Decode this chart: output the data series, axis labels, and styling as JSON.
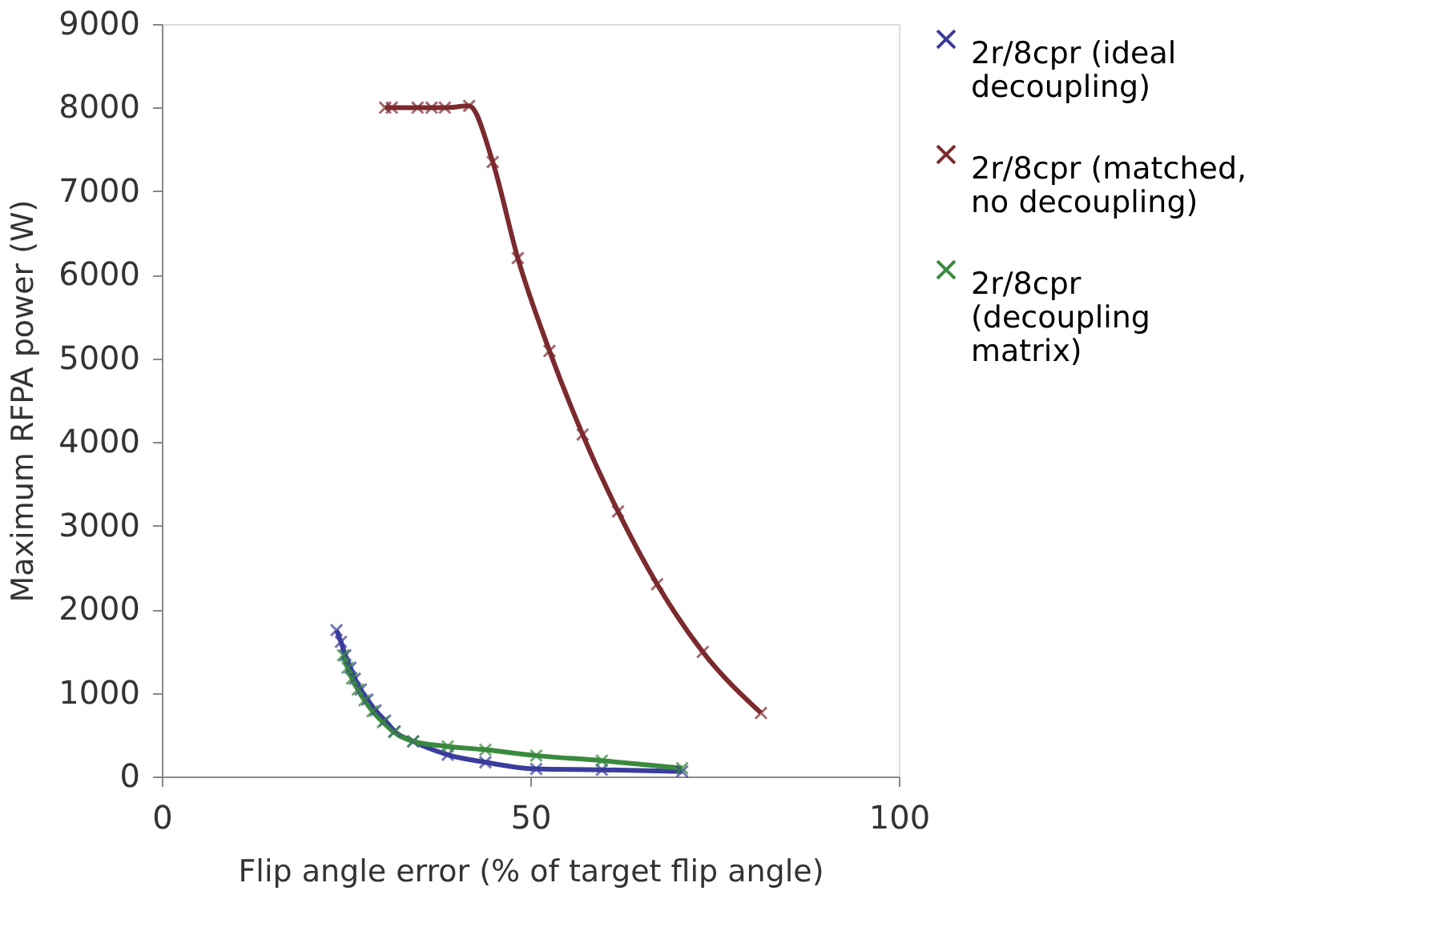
{
  "chart_data": {
    "type": "line",
    "xlabel": "Flip angle error (% of target flip angle)",
    "ylabel": "Maximum RFPA power (W)",
    "xlim": [
      0,
      100
    ],
    "xticks": [
      0,
      50,
      100
    ],
    "ylim": [
      0,
      9000
    ],
    "yticks": [
      0,
      1000,
      2000,
      3000,
      4000,
      5000,
      6000,
      7000,
      8000,
      9000
    ],
    "grid": false,
    "legend": "right",
    "marker": "cross",
    "line_style": "solid",
    "series": [
      {
        "name": "2r/8cpr (ideal decoupling)",
        "color": "#3a3d9c",
        "x": [
          23.7,
          24.3,
          24.9,
          25.6,
          26.2,
          27.0,
          27.9,
          29.0,
          30.3,
          31.6,
          34.1,
          38.8,
          43.9,
          50.8,
          59.7,
          70.6
        ],
        "values": [
          1750,
          1610,
          1450,
          1300,
          1170,
          1040,
          920,
          790,
          670,
          540,
          420,
          260,
          170,
          90,
          80,
          60
        ]
      },
      {
        "name": "2r/8cpr (matched, no decoupling)",
        "color": "#7b2a2e",
        "x": [
          30.3,
          31.2,
          34.7,
          36.6,
          38.4,
          41.7,
          44.9,
          48.3,
          52.6,
          57.1,
          61.9,
          67.2,
          73.4,
          81.3
        ],
        "values": [
          8000,
          8000,
          8000,
          8000,
          8000,
          8020,
          7350,
          6200,
          5090,
          4090,
          3170,
          2300,
          1490,
          760
        ]
      },
      {
        "name": "2r/8cpr (decoupling matrix)",
        "color": "#3a8a3e",
        "x": [
          24.6,
          25.2,
          25.8,
          26.6,
          27.5,
          28.6,
          30.0,
          31.5,
          34.1,
          38.8,
          43.9,
          50.8,
          59.7,
          70.6
        ],
        "values": [
          1450,
          1300,
          1170,
          1040,
          910,
          780,
          650,
          530,
          420,
          360,
          320,
          250,
          190,
          100
        ]
      }
    ]
  }
}
